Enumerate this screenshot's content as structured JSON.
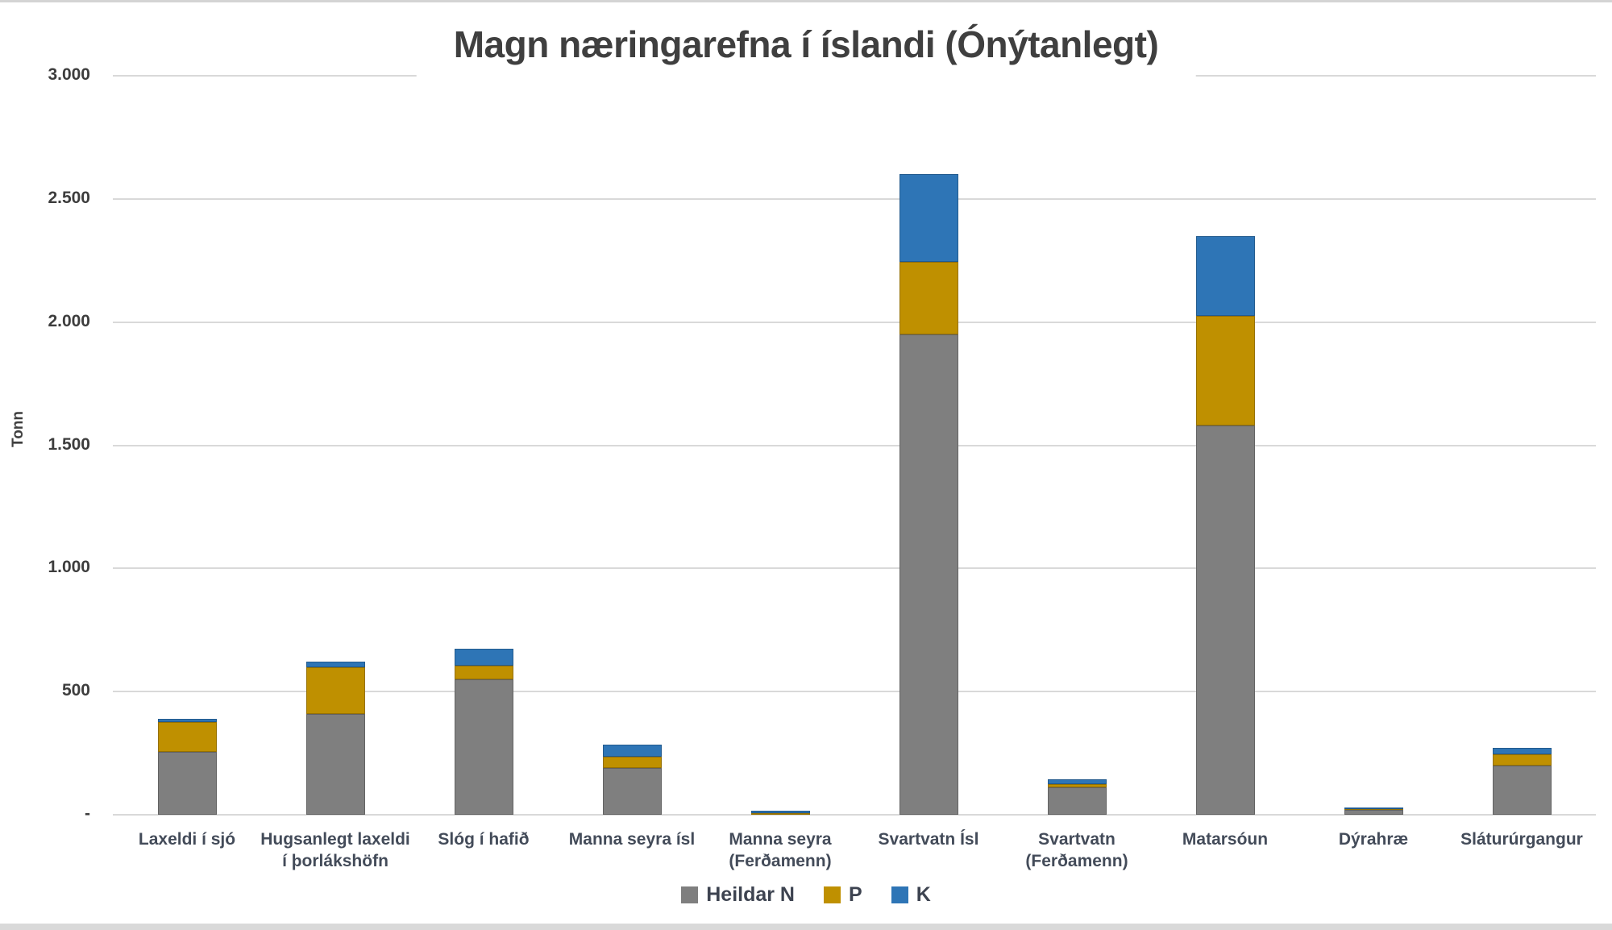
{
  "chart_data": {
    "type": "bar",
    "stacked": true,
    "title": "Magn næringarefna í íslandi (Ónýtanlegt)",
    "ylabel": "Tonn",
    "xlabel": "",
    "ylim": [
      0,
      3000
    ],
    "ytick_interval": 500,
    "ytick_labels": [
      "-",
      "500",
      "1.000",
      "1.500",
      "2.000",
      "2.500",
      "3.000"
    ],
    "grid": true,
    "legend_position": "bottom",
    "categories": [
      "Laxeldi í sjó",
      "Hugsanlegt laxeldi í þorlákshöfn",
      "Slóg í hafið",
      "Manna seyra ísl",
      "Manna seyra (Ferðamenn)",
      "Svartvatn Ísl",
      "Svartvatn (Ferðamenn)",
      "Matarsóun",
      "Dýrahræ",
      "Sláturúrgangur"
    ],
    "series": [
      {
        "name": "Heildar N",
        "color": "#7F7F7F",
        "values": [
          255,
          410,
          550,
          190,
          5,
          1950,
          110,
          1580,
          20,
          200
        ]
      },
      {
        "name": "P",
        "color": "#BF9000",
        "values": [
          120,
          190,
          55,
          45,
          3,
          295,
          15,
          445,
          5,
          45
        ]
      },
      {
        "name": "K",
        "color": "#2E75B6",
        "values": [
          15,
          20,
          70,
          50,
          8,
          355,
          20,
          325,
          5,
          25
        ]
      }
    ]
  },
  "colors": {
    "background": "#FFFFFF",
    "gridline": "#D9D9D9",
    "title_text": "#3F3F3F",
    "axis_text": "#434B59",
    "edge_strip": "#D9D9D9",
    "series_n": "#7F7F7F",
    "series_p": "#BF9000",
    "series_k": "#2E75B6"
  }
}
